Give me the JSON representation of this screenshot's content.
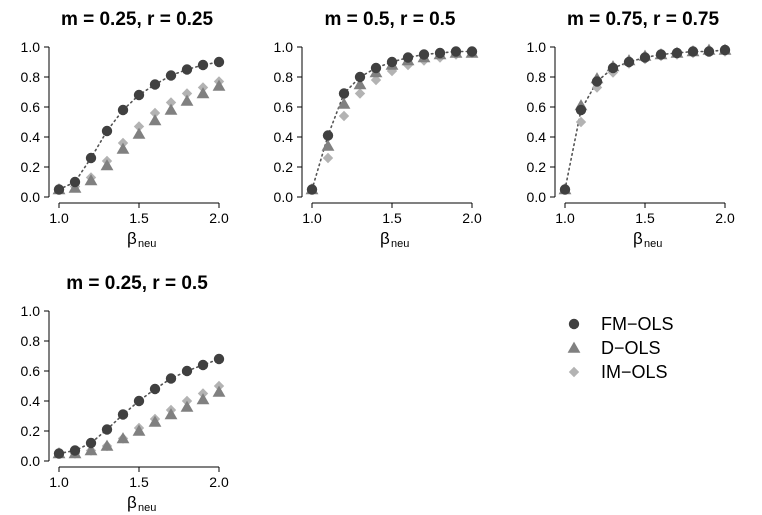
{
  "colors": {
    "FM-OLS": "#404040",
    "D-OLS": "#808080",
    "IM-OLS": "#b3b3b3",
    "axis": "#000000",
    "dotted_line": "#555555"
  },
  "legend": {
    "placement": "right, beside bottom-left panel",
    "items": [
      {
        "name": "FM−OLS",
        "marker": "circle"
      },
      {
        "name": "D−OLS",
        "marker": "triangle"
      },
      {
        "name": "IM−OLS",
        "marker": "diamond"
      }
    ]
  },
  "chart_data": [
    {
      "type": "scatter",
      "title": "m = 0.25, r = 0.25",
      "xlabel_main": "β",
      "xlabel_sub": "neu",
      "ylabel": "",
      "xlim": [
        1.0,
        2.0
      ],
      "ylim": [
        0.0,
        1.0
      ],
      "xticks": [
        "1.0",
        "1.5",
        "2.0"
      ],
      "yticks": [
        "0.0",
        "0.2",
        "0.4",
        "0.6",
        "0.8",
        "1.0"
      ],
      "grid": false,
      "x": [
        1.0,
        1.1,
        1.2,
        1.3,
        1.4,
        1.5,
        1.6,
        1.7,
        1.8,
        1.9,
        2.0
      ],
      "series": [
        {
          "name": "FM−OLS",
          "marker": "circle",
          "values": [
            0.05,
            0.1,
            0.26,
            0.44,
            0.58,
            0.68,
            0.75,
            0.81,
            0.85,
            0.88,
            0.9
          ]
        },
        {
          "name": "D−OLS",
          "marker": "triangle",
          "values": [
            0.05,
            0.06,
            0.11,
            0.21,
            0.32,
            0.42,
            0.51,
            0.58,
            0.64,
            0.69,
            0.74
          ]
        },
        {
          "name": "IM−OLS",
          "marker": "diamond",
          "values": [
            0.05,
            0.07,
            0.13,
            0.24,
            0.36,
            0.47,
            0.56,
            0.63,
            0.69,
            0.73,
            0.77
          ]
        }
      ]
    },
    {
      "type": "scatter",
      "title": "m = 0.5, r = 0.5",
      "xlabel_main": "β",
      "xlabel_sub": "neu",
      "ylabel": "",
      "xlim": [
        1.0,
        2.0
      ],
      "ylim": [
        0.0,
        1.0
      ],
      "xticks": [
        "1.0",
        "1.5",
        "2.0"
      ],
      "yticks": [
        "0.0",
        "0.2",
        "0.4",
        "0.6",
        "0.8",
        "1.0"
      ],
      "grid": false,
      "x": [
        1.0,
        1.1,
        1.2,
        1.3,
        1.4,
        1.5,
        1.6,
        1.7,
        1.8,
        1.9,
        2.0
      ],
      "series": [
        {
          "name": "FM−OLS",
          "marker": "circle",
          "values": [
            0.05,
            0.41,
            0.69,
            0.8,
            0.86,
            0.9,
            0.93,
            0.95,
            0.96,
            0.97,
            0.97
          ]
        },
        {
          "name": "D−OLS",
          "marker": "triangle",
          "values": [
            0.05,
            0.34,
            0.62,
            0.75,
            0.83,
            0.88,
            0.91,
            0.93,
            0.95,
            0.96,
            0.96
          ]
        },
        {
          "name": "IM−OLS",
          "marker": "diamond",
          "values": [
            0.05,
            0.26,
            0.54,
            0.69,
            0.78,
            0.84,
            0.88,
            0.91,
            0.93,
            0.95,
            0.96
          ]
        }
      ]
    },
    {
      "type": "scatter",
      "title": "m = 0.75, r = 0.75",
      "xlabel_main": "β",
      "xlabel_sub": "neu",
      "ylabel": "",
      "xlim": [
        1.0,
        2.0
      ],
      "ylim": [
        0.0,
        1.0
      ],
      "xticks": [
        "1.0",
        "1.5",
        "2.0"
      ],
      "yticks": [
        "0.0",
        "0.2",
        "0.4",
        "0.6",
        "0.8",
        "1.0"
      ],
      "grid": false,
      "x": [
        1.0,
        1.1,
        1.2,
        1.3,
        1.4,
        1.5,
        1.6,
        1.7,
        1.8,
        1.9,
        2.0
      ],
      "series": [
        {
          "name": "FM−OLS",
          "marker": "circle",
          "values": [
            0.05,
            0.58,
            0.77,
            0.86,
            0.9,
            0.93,
            0.95,
            0.96,
            0.97,
            0.97,
            0.98
          ]
        },
        {
          "name": "D−OLS",
          "marker": "triangle",
          "values": [
            0.05,
            0.61,
            0.79,
            0.87,
            0.91,
            0.94,
            0.95,
            0.96,
            0.97,
            0.98,
            0.98
          ]
        },
        {
          "name": "IM−OLS",
          "marker": "diamond",
          "values": [
            0.05,
            0.5,
            0.73,
            0.83,
            0.89,
            0.92,
            0.94,
            0.95,
            0.96,
            0.97,
            0.97
          ]
        }
      ]
    },
    {
      "type": "scatter",
      "title": "m = 0.25, r = 0.5",
      "xlabel_main": "β",
      "xlabel_sub": "neu",
      "ylabel": "",
      "xlim": [
        1.0,
        2.0
      ],
      "ylim": [
        0.0,
        1.0
      ],
      "xticks": [
        "1.0",
        "1.5",
        "2.0"
      ],
      "yticks": [
        "0.0",
        "0.2",
        "0.4",
        "0.6",
        "0.8",
        "1.0"
      ],
      "grid": false,
      "x": [
        1.0,
        1.1,
        1.2,
        1.3,
        1.4,
        1.5,
        1.6,
        1.7,
        1.8,
        1.9,
        2.0
      ],
      "series": [
        {
          "name": "FM−OLS",
          "marker": "circle",
          "values": [
            0.05,
            0.07,
            0.12,
            0.21,
            0.31,
            0.4,
            0.48,
            0.55,
            0.6,
            0.64,
            0.68
          ]
        },
        {
          "name": "D−OLS",
          "marker": "triangle",
          "values": [
            0.05,
            0.05,
            0.07,
            0.1,
            0.15,
            0.2,
            0.26,
            0.31,
            0.36,
            0.41,
            0.46
          ]
        },
        {
          "name": "IM−OLS",
          "marker": "diamond",
          "values": [
            0.05,
            0.05,
            0.07,
            0.1,
            0.15,
            0.22,
            0.28,
            0.34,
            0.4,
            0.45,
            0.5
          ]
        }
      ]
    }
  ]
}
